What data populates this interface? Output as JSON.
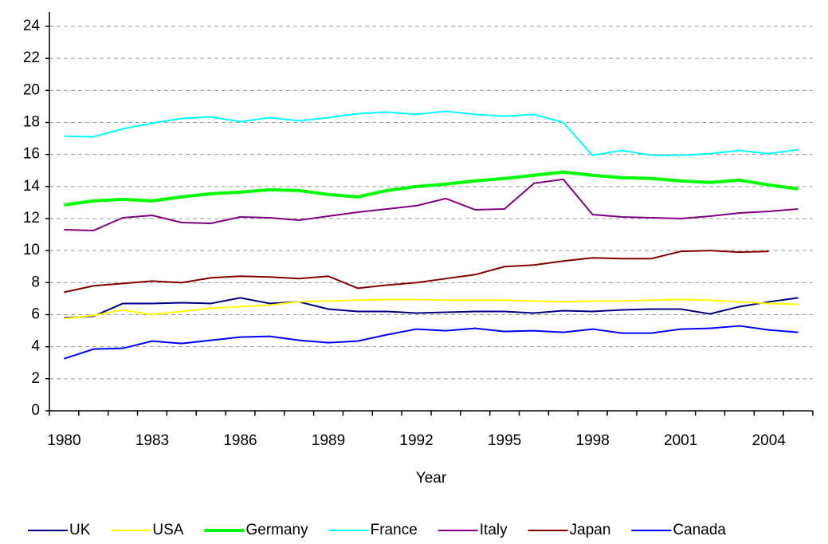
{
  "chart_data": {
    "type": "line",
    "x_label": "Year",
    "categories": [
      "1980",
      null,
      null,
      "1983",
      null,
      null,
      "1986",
      null,
      null,
      "1989",
      null,
      null,
      "1992",
      null,
      null,
      "1995",
      null,
      null,
      "1998",
      null,
      null,
      "2001",
      null,
      null,
      "2004",
      null
    ],
    "ylim": [
      0,
      24
    ],
    "yticks": [
      0,
      2,
      4,
      6,
      8,
      10,
      12,
      14,
      16,
      18,
      20,
      22,
      24
    ],
    "grid": true,
    "legend": "bottom",
    "series": [
      {
        "name": "UK",
        "color": "#000080",
        "width": 2,
        "values": [
          5.8,
          5.9,
          6.7,
          6.7,
          6.75,
          6.7,
          7.05,
          6.7,
          6.8,
          6.35,
          6.2,
          6.2,
          6.1,
          6.15,
          6.2,
          6.2,
          6.1,
          6.25,
          6.2,
          6.3,
          6.35,
          6.35,
          6.05,
          6.5,
          6.8,
          7.05
        ]
      },
      {
        "name": "USA",
        "color": "#ffff00",
        "width": 2,
        "values": [
          5.75,
          5.95,
          6.3,
          6.0,
          6.2,
          6.4,
          6.5,
          6.6,
          6.8,
          6.85,
          6.9,
          6.95,
          6.95,
          6.9,
          6.9,
          6.9,
          6.85,
          6.8,
          6.85,
          6.85,
          6.9,
          6.95,
          6.9,
          6.8,
          6.7,
          6.65
        ]
      },
      {
        "name": "Germany",
        "color": "#00ff00",
        "width": 4,
        "values": [
          12.85,
          13.1,
          13.2,
          13.1,
          13.35,
          13.55,
          13.65,
          13.8,
          13.75,
          13.5,
          13.35,
          13.75,
          14.0,
          14.15,
          14.35,
          14.5,
          14.7,
          14.9,
          14.7,
          14.55,
          14.5,
          14.35,
          14.25,
          14.4,
          14.1,
          13.85
        ]
      },
      {
        "name": "France",
        "color": "#00ffff",
        "width": 2,
        "values": [
          17.15,
          17.1,
          17.6,
          17.95,
          18.25,
          18.35,
          18.05,
          18.3,
          18.1,
          18.3,
          18.55,
          18.65,
          18.5,
          18.7,
          18.5,
          18.4,
          18.5,
          18.0,
          15.95,
          16.25,
          15.95,
          15.95,
          16.05,
          16.25,
          16.05,
          16.3
        ]
      },
      {
        "name": "Italy",
        "color": "#800080",
        "width": 2,
        "values": [
          11.3,
          11.25,
          12.05,
          12.2,
          11.75,
          11.7,
          12.1,
          12.05,
          11.9,
          12.15,
          12.4,
          12.6,
          12.8,
          13.25,
          12.55,
          12.6,
          14.2,
          14.45,
          12.25,
          12.1,
          12.05,
          12.0,
          12.15,
          12.35,
          12.45,
          12.6
        ]
      },
      {
        "name": "Japan",
        "color": "#800000",
        "width": 2,
        "values": [
          7.4,
          7.8,
          7.95,
          8.1,
          8.0,
          8.3,
          8.4,
          8.35,
          8.25,
          8.4,
          7.65,
          7.85,
          8.0,
          8.25,
          8.5,
          9.0,
          9.1,
          9.35,
          9.55,
          9.5,
          9.5,
          9.95,
          10.0,
          9.9,
          9.95,
          null
        ]
      },
      {
        "name": "Canada",
        "color": "#0000ff",
        "width": 2,
        "values": [
          3.25,
          3.85,
          3.9,
          4.35,
          4.2,
          4.4,
          4.6,
          4.65,
          4.4,
          4.25,
          4.35,
          4.75,
          5.1,
          5.0,
          5.15,
          4.95,
          5.0,
          4.9,
          5.1,
          4.85,
          4.85,
          5.1,
          5.15,
          5.3,
          5.05,
          4.9
        ]
      }
    ]
  }
}
